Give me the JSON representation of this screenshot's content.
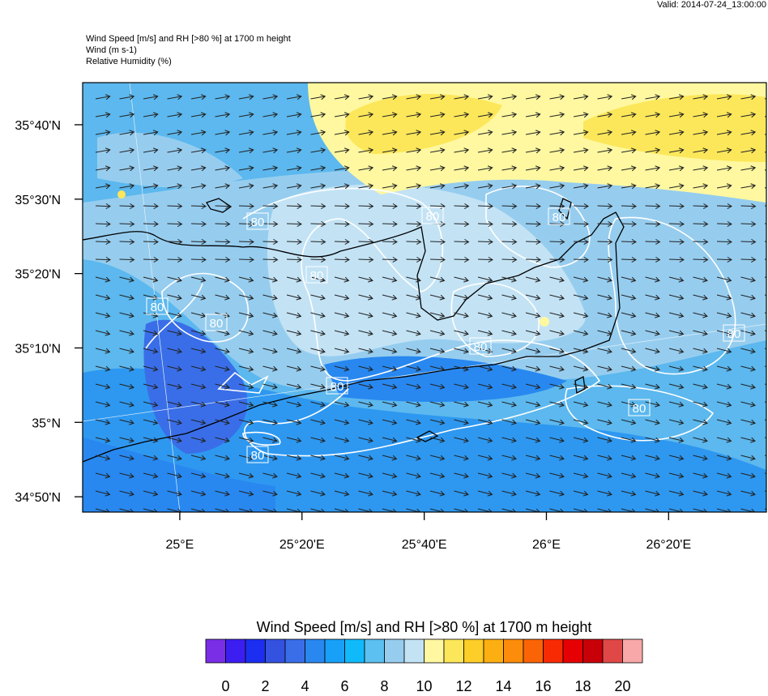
{
  "header": {
    "valid": "Valid: 2014-07-24_13:00:00",
    "lines": [
      "Wind Speed [m/s] and RH [>80 %] at 1700 m height",
      "Wind   (m s-1)",
      "Relative Humidity   (%)"
    ]
  },
  "map": {
    "xlim": [
      24.735,
      26.6
    ],
    "ylim": [
      34.799,
      35.761
    ],
    "xticks": [
      {
        "value": 25,
        "label": "25°E"
      },
      {
        "value": 25.3333,
        "label": "25°20'E"
      },
      {
        "value": 25.6667,
        "label": "25°40'E"
      },
      {
        "value": 26,
        "label": "26°E"
      },
      {
        "value": 26.3333,
        "label": "26°20'E"
      }
    ],
    "yticks": [
      {
        "value": 35.6667,
        "label": "35°40'N"
      },
      {
        "value": 35.5,
        "label": "35°30'N"
      },
      {
        "value": 35.3333,
        "label": "35°20'N"
      },
      {
        "value": 35.1667,
        "label": "35°10'N"
      },
      {
        "value": 35,
        "label": "35°N"
      },
      {
        "value": 34.8333,
        "label": "34°50'N"
      }
    ],
    "contour_labels": [
      "80",
      "80",
      "80",
      "80",
      "80",
      "80",
      "80",
      "80",
      "80",
      "80",
      "80"
    ]
  },
  "colorbar": {
    "title": "Wind Speed [m/s] and RH [>80 %] at 1700 m height",
    "clim": [
      -1,
      21
    ],
    "colors": [
      "#7a2ee6",
      "#3c1ef2",
      "#1c2ef0",
      "#3452e0",
      "#3a6ee8",
      "#2888f0",
      "#18a0f8",
      "#10bafa",
      "#5cc0f0",
      "#96cdef",
      "#c3e3f5",
      "#fff8a0",
      "#fce75a",
      "#fdcd28",
      "#fdaf12",
      "#fd8c0a",
      "#fb6406",
      "#f82a04",
      "#e60004",
      "#c80008",
      "#e04848",
      "#f8a8a8"
    ],
    "ticks": [
      0,
      2,
      4,
      6,
      8,
      10,
      12,
      14,
      16,
      18,
      20
    ]
  }
}
